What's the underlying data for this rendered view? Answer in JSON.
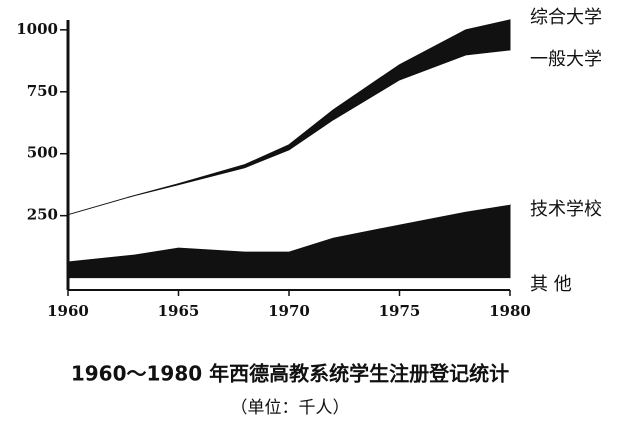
{
  "chart_data": {
    "type": "stacked-area",
    "title": "1960～1980 年西德高教系统学生注册登记统计",
    "subtitle": "（单位：千人）",
    "x": [
      1960,
      1963,
      1965,
      1968,
      1970,
      1972,
      1975,
      1978,
      1980
    ],
    "series": [
      {
        "name": "其    他",
        "color": "#111111",
        "values": [
          30,
          40,
          55,
          50,
          50,
          70,
          90,
          110,
          120
        ]
      },
      {
        "name": "技术学校",
        "color": "#111111",
        "values": [
          35,
          53,
          66,
          55,
          55,
          91,
          124,
          156,
          174
        ]
      },
      {
        "name": "一般大学",
        "color": "#ffffff",
        "values": [
          189,
          238,
          254,
          339,
          411,
          476,
          584,
          633,
          625
        ]
      },
      {
        "name": "综合大学",
        "color": "#111111",
        "values": [
          0,
          0,
          4,
          12,
          20,
          40,
          61,
          101,
          121
        ]
      }
    ],
    "xlim": [
      1960,
      1980
    ],
    "xticks": [
      1960,
      1965,
      1970,
      1975,
      1980
    ],
    "ylim": [
      -50,
      1080
    ],
    "yticks": [
      250,
      500,
      750,
      1000
    ]
  }
}
